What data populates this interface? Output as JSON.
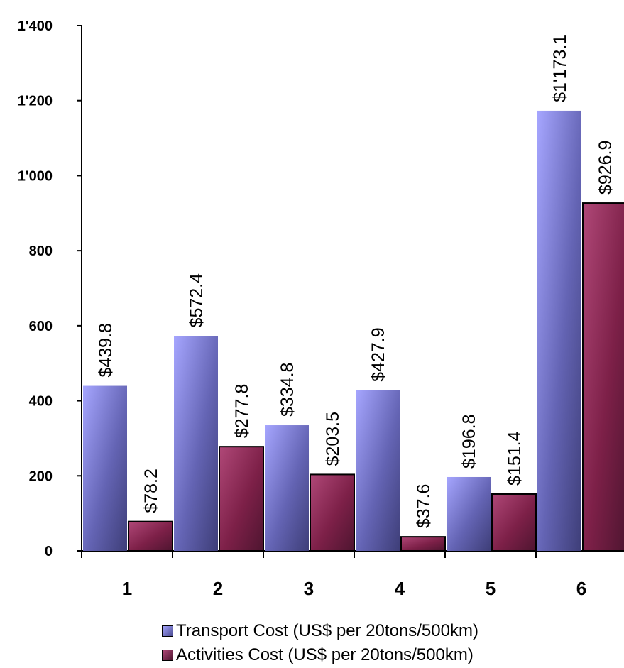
{
  "chart_data": {
    "type": "bar",
    "categories": [
      "1",
      "2",
      "3",
      "4",
      "5",
      "6"
    ],
    "series": [
      {
        "name": "Transport Cost (US$ per 20tons/500km)",
        "values": [
          439.8,
          572.4,
          334.8,
          427.9,
          196.8,
          1173.1
        ],
        "labels": [
          "$439.8",
          "$572.4",
          "$334.8",
          "$427.9",
          "$196.8",
          "$1'173.1"
        ],
        "color": "#7d7dd8"
      },
      {
        "name": "Activities Cost (US$ per 20tons/500km)",
        "values": [
          78.2,
          277.8,
          203.5,
          37.6,
          151.4,
          926.9
        ],
        "labels": [
          "$78.2",
          "$277.8",
          "$203.5",
          "$37.6",
          "$151.4",
          "$926.9"
        ],
        "color": "#8c2a55"
      }
    ],
    "yticks": [
      0,
      200,
      400,
      600,
      800,
      1000,
      1200,
      1400
    ],
    "ytick_labels": [
      "0",
      "200",
      "400",
      "600",
      "800",
      "1'000",
      "1'200",
      "1'400"
    ],
    "ylim": [
      0,
      1400
    ],
    "grid": false,
    "legend_position": "bottom"
  }
}
